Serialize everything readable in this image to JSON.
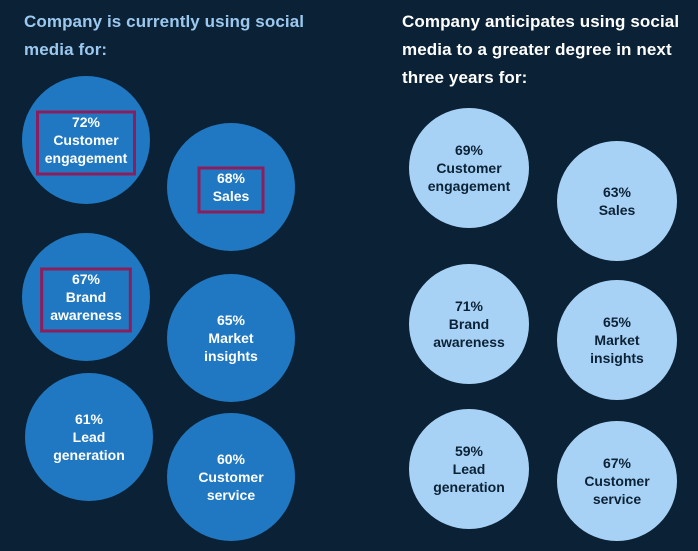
{
  "left_title": "Company is currently using social media for:",
  "right_title": "Company anticipates using social media to a greater degree in next three years for:",
  "colors": {
    "background": "#0b2236",
    "current_bubble": "#1f78c1",
    "future_bubble": "#a8d2f5",
    "highlight_box": "#8b1e5c",
    "left_title": "#9cc8ef",
    "right_title": "#ffffff"
  },
  "chart_data": [
    {
      "type": "bubble",
      "title": "Company is currently using social media for:",
      "unit": "%",
      "items": [
        {
          "label": [
            "Customer",
            "engagement"
          ],
          "value": 72,
          "highlighted": true
        },
        {
          "label": [
            "Sales"
          ],
          "value": 68,
          "highlighted": true
        },
        {
          "label": [
            "Brand",
            "awareness"
          ],
          "value": 67,
          "highlighted": true
        },
        {
          "label": [
            "Market",
            "insights"
          ],
          "value": 65,
          "highlighted": false
        },
        {
          "label": [
            "Lead",
            "generation"
          ],
          "value": 61,
          "highlighted": false
        },
        {
          "label": [
            "Customer",
            "service"
          ],
          "value": 60,
          "highlighted": false
        }
      ]
    },
    {
      "type": "bubble",
      "title": "Company anticipates using social media to a greater degree in next three years for:",
      "unit": "%",
      "items": [
        {
          "label": [
            "Customer",
            "engagement"
          ],
          "value": 69,
          "highlighted": false
        },
        {
          "label": [
            "Sales"
          ],
          "value": 63,
          "highlighted": false
        },
        {
          "label": [
            "Brand",
            "awareness"
          ],
          "value": 71,
          "highlighted": false
        },
        {
          "label": [
            "Market",
            "insights"
          ],
          "value": 65,
          "highlighted": false
        },
        {
          "label": [
            "Lead",
            "generation"
          ],
          "value": 59,
          "highlighted": false
        },
        {
          "label": [
            "Customer",
            "service"
          ],
          "value": 67,
          "highlighted": false
        }
      ]
    }
  ]
}
